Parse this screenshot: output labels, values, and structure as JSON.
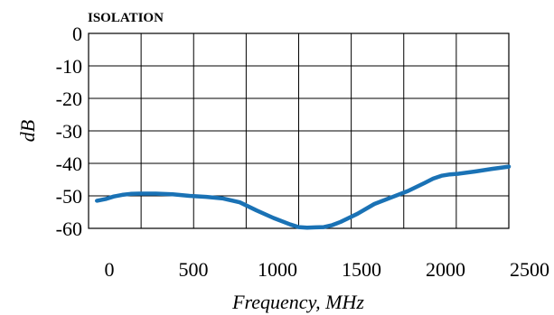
{
  "chart_data": {
    "type": "line",
    "title": "ISOLATION",
    "xlabel": "Frequency, MHz",
    "ylabel": "dB",
    "xlim": [
      0,
      2500
    ],
    "ylim": [
      -60,
      0
    ],
    "x_ticks": [
      "0",
      "500",
      "1000",
      "1500",
      "2000",
      "2500"
    ],
    "y_ticks": [
      "0",
      "-10",
      "-20",
      "-30",
      "-40",
      "-50",
      "-60"
    ],
    "grid": true,
    "series_color": "#1a72b5",
    "series": [
      {
        "x": [
          50,
          100,
          150,
          200,
          250,
          300,
          400,
          500,
          600,
          700,
          800,
          900,
          1000,
          1100,
          1200,
          1250,
          1300,
          1350,
          1400,
          1450,
          1500,
          1600,
          1700,
          1800,
          1900,
          2000,
          2050,
          2100,
          2150,
          2200,
          2300,
          2400,
          2500
        ],
        "values": [
          -51.5,
          -51,
          -50.2,
          -49.7,
          -49.4,
          -49.3,
          -49.3,
          -49.5,
          -50,
          -50.3,
          -50.8,
          -52,
          -54.5,
          -56.8,
          -58.8,
          -59.6,
          -59.8,
          -59.7,
          -59.6,
          -59,
          -58,
          -55.5,
          -52.5,
          -50.5,
          -48.5,
          -46,
          -44.7,
          -43.8,
          -43.4,
          -43.2,
          -42.5,
          -41.7,
          -41
        ]
      }
    ]
  }
}
